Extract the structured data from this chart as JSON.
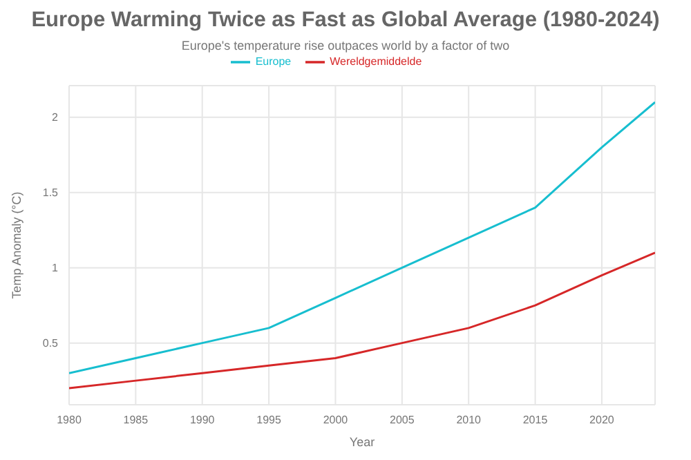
{
  "chart_data": {
    "type": "line",
    "title": "Europe Warming Twice as Fast as Global Average (1980-2024)",
    "subtitle": "Europe's temperature rise outpaces world by a factor of two",
    "xlabel": "Year",
    "ylabel": "Temp Anomaly (°C)",
    "x": [
      1980,
      1985,
      1990,
      1995,
      2000,
      2005,
      2010,
      2015,
      2020,
      2024
    ],
    "series": [
      {
        "name": "Europe",
        "color": "#17becf",
        "values": [
          0.3,
          0.4,
          0.5,
          0.6,
          0.8,
          1.0,
          1.2,
          1.4,
          1.8,
          2.1
        ]
      },
      {
        "name": "Wereldgemiddelde",
        "color": "#d62728",
        "values": [
          0.2,
          0.25,
          0.3,
          0.35,
          0.4,
          0.5,
          0.6,
          0.75,
          0.95,
          1.1
        ]
      }
    ],
    "xlim": [
      1980,
      2024
    ],
    "xticks": [
      1980,
      1985,
      1990,
      1995,
      2000,
      2005,
      2010,
      2015,
      2020
    ],
    "ylim": [
      0.09,
      2.21
    ],
    "yticks": [
      0.5,
      1,
      1.5,
      2
    ],
    "grid": true,
    "legend": "top",
    "marker": "none",
    "line_style": "solid"
  }
}
